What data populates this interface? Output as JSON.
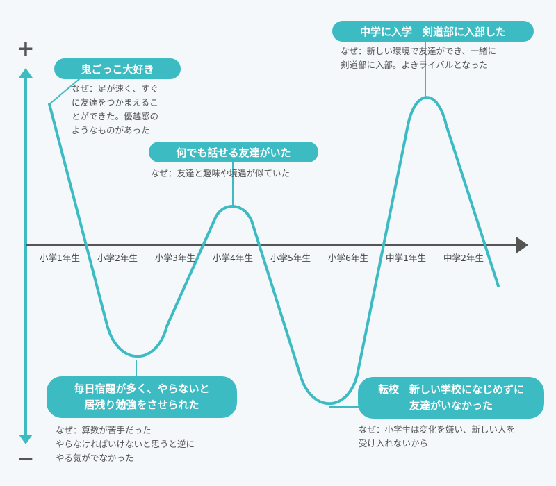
{
  "axis": {
    "plus_sign": "+",
    "minus_sign": "−",
    "ticks": [
      "小学1年生",
      "小学2年生",
      "小学3年生",
      "小学4年生",
      "小学5年生",
      "小学6年生",
      "中学1年生",
      "中学2年生"
    ]
  },
  "colors": {
    "accent": "#3dbbc3",
    "axis": "#555555",
    "text": "#555555"
  },
  "events": [
    {
      "title": "鬼ごっこ大好き",
      "note": [
        "なぜ：足が速く、すぐ",
        "に友達をつかまえるこ",
        "とができた。優越感の",
        "ようなものがあった"
      ]
    },
    {
      "title": [
        "毎日宿題が多く、やらないと",
        "居残り勉強をさせられた"
      ],
      "note": [
        "なぜ：算数が苦手だった",
        "やらなければいけないと思うと逆に",
        "やる気がでなかった"
      ]
    },
    {
      "title": "何でも話せる友達がいた",
      "note": [
        "なぜ：友達と趣味や境遇が似ていた"
      ]
    },
    {
      "title": [
        "転校　新しい学校になじめずに",
        "友達がいなかった"
      ],
      "note": [
        "なぜ：小学生は変化を嫌い、新しい人を",
        "受け入れないから"
      ]
    },
    {
      "title": "中学に入学　剣道部に入部した",
      "note": [
        "なぜ：新しい環境で友達ができ、一緒に",
        "剣道部に入部。よきライバルとなった"
      ]
    }
  ]
}
